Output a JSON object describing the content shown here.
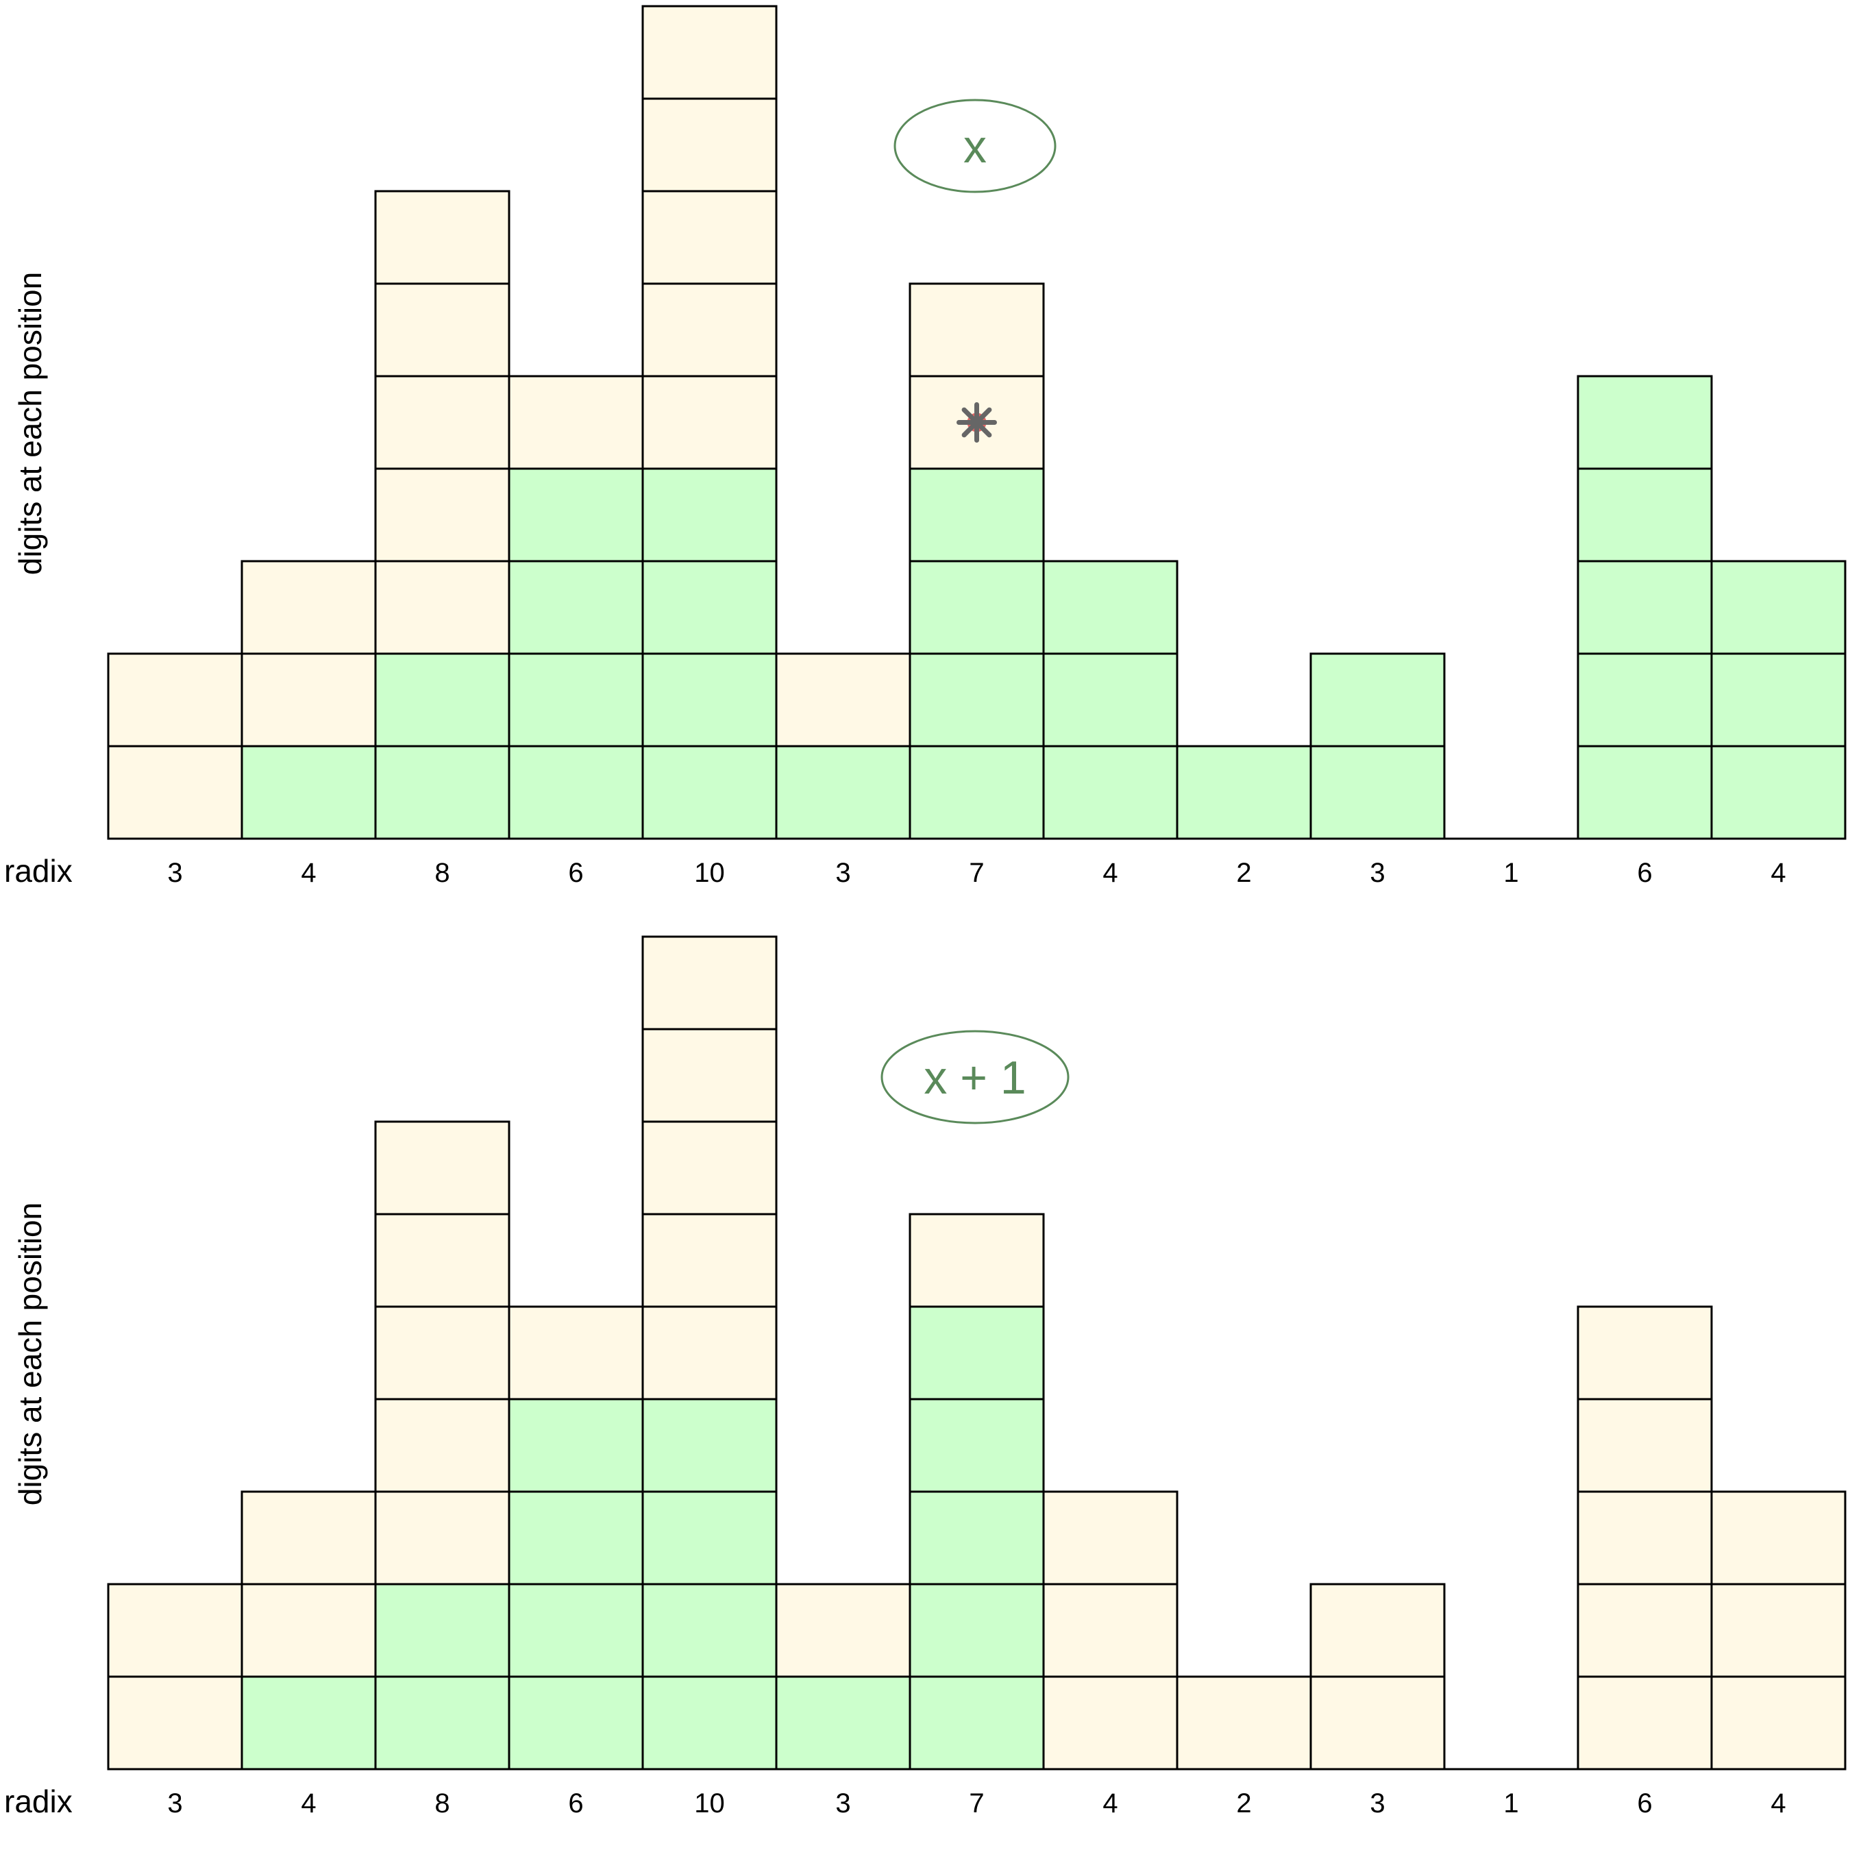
{
  "colors": {
    "digit_fill": "#ccffcc",
    "empty_fill": "#fff9e6",
    "outline": "#000000",
    "label_accent": "#5a8a5a",
    "marker_fill": "#e06666",
    "marker_stroke": "#666666"
  },
  "radix_label": "radix",
  "ylabel": "digits at each position",
  "radices": [
    "3",
    "4",
    "8",
    "6",
    "10",
    "3",
    "7",
    "4",
    "2",
    "3",
    "1",
    "6",
    "4"
  ],
  "chart_data": [
    {
      "type": "stacked-cells",
      "value_label": "x",
      "radix": [
        3,
        4,
        8,
        6,
        10,
        3,
        7,
        4,
        2,
        3,
        1,
        6,
        4
      ],
      "digit": [
        0,
        1,
        2,
        4,
        4,
        1,
        4,
        3,
        1,
        2,
        0,
        5,
        3
      ],
      "marker_column": 6,
      "marker_row": 4,
      "marker_icon": "asterisk-marker-icon"
    },
    {
      "type": "stacked-cells",
      "value_label": "x + 1",
      "radix": [
        3,
        4,
        8,
        6,
        10,
        3,
        7,
        4,
        2,
        3,
        1,
        6,
        4
      ],
      "digit": [
        0,
        1,
        2,
        4,
        4,
        1,
        5,
        0,
        0,
        0,
        0,
        0,
        0
      ]
    }
  ]
}
